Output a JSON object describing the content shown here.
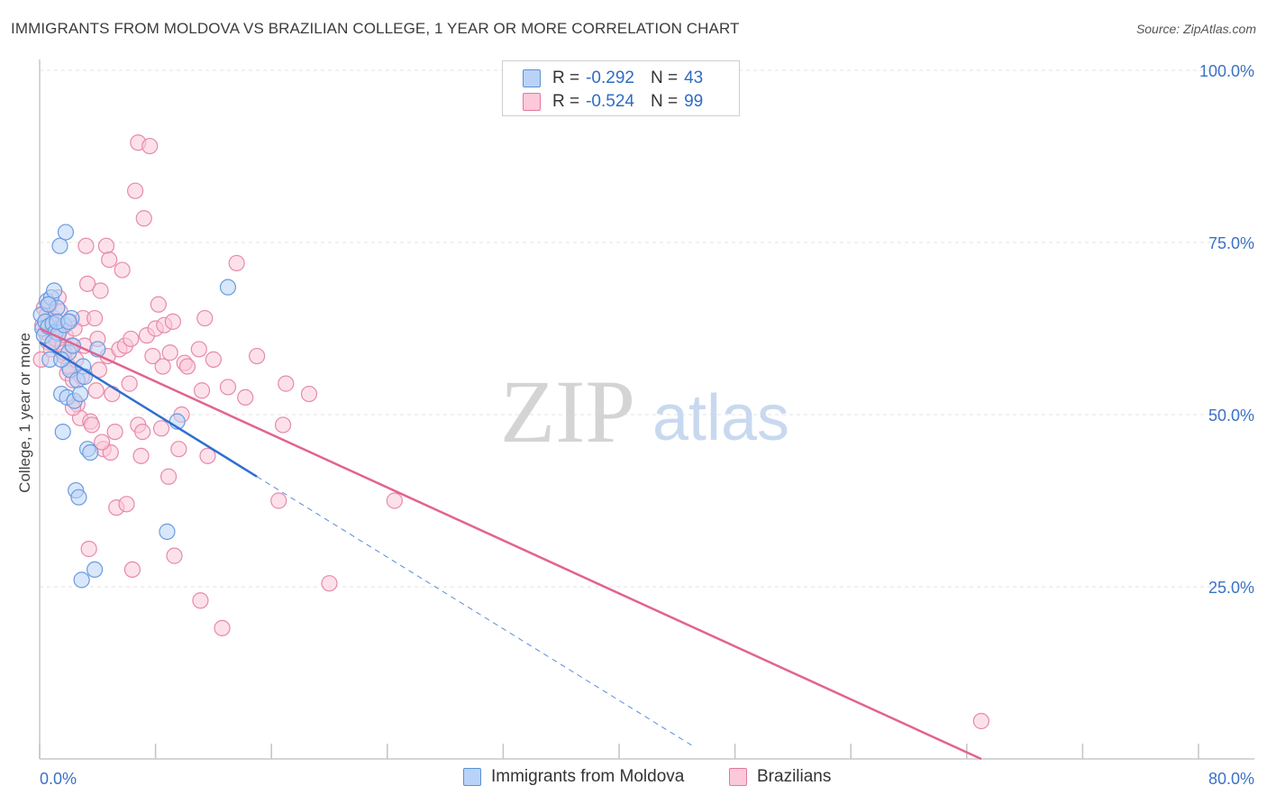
{
  "header": {
    "title": "IMMIGRANTS FROM MOLDOVA VS BRAZILIAN COLLEGE, 1 YEAR OR MORE CORRELATION CHART",
    "source": "Source: ZipAtlas.com"
  },
  "legend": {
    "r_label": "R =",
    "n_label": "N =",
    "series": [
      {
        "name": "Immigrants from Moldova",
        "r": "-0.292",
        "n": "43"
      },
      {
        "name": "Brazilians",
        "r": "-0.524",
        "n": "99"
      }
    ]
  },
  "watermark": {
    "zip": "ZIP",
    "atlas": "atlas"
  },
  "colors": {
    "blue_fill": "#b9d3f6",
    "blue_stroke": "#6a9be0",
    "blue_line": "#2f6fd0",
    "pink_fill": "#fbc9d9",
    "pink_stroke": "#e68aa9",
    "pink_line": "#e2638f",
    "axis_text": "#3a72c8",
    "grid": "#e3e3e3"
  },
  "chart_data": {
    "type": "scatter",
    "title": "IMMIGRANTS FROM MOLDOVA VS BRAZILIAN COLLEGE, 1 YEAR OR MORE CORRELATION CHART",
    "xlabel": "",
    "ylabel": "College, 1 year or more",
    "xlim": [
      0,
      80
    ],
    "ylim": [
      0,
      100
    ],
    "x_tick_labels": [
      "0.0%",
      "80.0%"
    ],
    "y_ticks": [
      25,
      50,
      75,
      100
    ],
    "y_tick_labels": [
      "25.0%",
      "50.0%",
      "75.0%",
      "100.0%"
    ],
    "grid": true,
    "series": [
      {
        "name": "Immigrants from Moldova",
        "r": -0.292,
        "n": 43,
        "trend": {
          "x0": 0,
          "y0": 60.5,
          "x1": 15,
          "y1": 41.0,
          "dash_to_x": 45
        },
        "points": [
          [
            0.1,
            64.5
          ],
          [
            0.2,
            62.5
          ],
          [
            0.3,
            61.5
          ],
          [
            0.4,
            63.5
          ],
          [
            0.5,
            66.5
          ],
          [
            0.6,
            62.8
          ],
          [
            0.7,
            58.0
          ],
          [
            0.8,
            67.0
          ],
          [
            0.9,
            63.2
          ],
          [
            1.0,
            68.0
          ],
          [
            1.1,
            62.0
          ],
          [
            1.2,
            65.5
          ],
          [
            1.3,
            61.8
          ],
          [
            1.4,
            74.5
          ],
          [
            1.5,
            53.0
          ],
          [
            1.6,
            47.5
          ],
          [
            1.7,
            63.0
          ],
          [
            1.8,
            76.5
          ],
          [
            1.9,
            52.5
          ],
          [
            2.0,
            59.0
          ],
          [
            2.1,
            56.5
          ],
          [
            2.2,
            64.0
          ],
          [
            2.3,
            60.0
          ],
          [
            2.4,
            52.0
          ],
          [
            2.5,
            39.0
          ],
          [
            2.6,
            55.0
          ],
          [
            2.7,
            38.0
          ],
          [
            2.8,
            53.0
          ],
          [
            2.9,
            26.0
          ],
          [
            3.0,
            57.0
          ],
          [
            3.1,
            55.5
          ],
          [
            3.3,
            45.0
          ],
          [
            3.5,
            44.5
          ],
          [
            3.8,
            27.5
          ],
          [
            4.0,
            59.5
          ],
          [
            1.2,
            63.5
          ],
          [
            0.9,
            60.5
          ],
          [
            2.0,
            63.5
          ],
          [
            1.5,
            58.0
          ],
          [
            0.6,
            66.0
          ],
          [
            8.8,
            33.0
          ],
          [
            9.5,
            49.0
          ],
          [
            13.0,
            68.5
          ]
        ]
      },
      {
        "name": "Brazilians",
        "r": -0.524,
        "n": 99,
        "trend": {
          "x0": 0,
          "y0": 62.5,
          "x1": 65,
          "y1": 0
        },
        "points": [
          [
            0.1,
            58.0
          ],
          [
            0.2,
            63.0
          ],
          [
            0.3,
            65.5
          ],
          [
            0.4,
            62.0
          ],
          [
            0.5,
            64.5
          ],
          [
            0.6,
            60.5
          ],
          [
            0.7,
            66.0
          ],
          [
            0.8,
            59.5
          ],
          [
            0.9,
            63.5
          ],
          [
            1.0,
            64.0
          ],
          [
            1.1,
            61.0
          ],
          [
            1.2,
            63.0
          ],
          [
            1.3,
            67.0
          ],
          [
            1.4,
            65.0
          ],
          [
            1.5,
            62.5
          ],
          [
            1.6,
            60.0
          ],
          [
            1.7,
            58.5
          ],
          [
            1.8,
            61.5
          ],
          [
            1.9,
            56.0
          ],
          [
            2.0,
            57.0
          ],
          [
            2.1,
            63.5
          ],
          [
            2.2,
            60.0
          ],
          [
            2.3,
            55.0
          ],
          [
            2.4,
            62.5
          ],
          [
            2.5,
            58.0
          ],
          [
            2.6,
            51.5
          ],
          [
            2.8,
            49.5
          ],
          [
            3.0,
            64.0
          ],
          [
            3.1,
            60.0
          ],
          [
            3.2,
            74.5
          ],
          [
            3.3,
            69.0
          ],
          [
            3.5,
            49.0
          ],
          [
            3.6,
            48.5
          ],
          [
            3.8,
            64.0
          ],
          [
            3.9,
            53.5
          ],
          [
            4.0,
            61.0
          ],
          [
            4.1,
            56.5
          ],
          [
            4.2,
            68.0
          ],
          [
            4.4,
            45.0
          ],
          [
            4.6,
            74.5
          ],
          [
            4.7,
            58.5
          ],
          [
            4.8,
            72.5
          ],
          [
            4.9,
            44.5
          ],
          [
            5.0,
            53.0
          ],
          [
            5.3,
            36.5
          ],
          [
            5.5,
            59.5
          ],
          [
            5.7,
            71.0
          ],
          [
            5.9,
            60.0
          ],
          [
            6.0,
            37.0
          ],
          [
            6.2,
            54.5
          ],
          [
            6.4,
            27.5
          ],
          [
            6.6,
            82.5
          ],
          [
            6.8,
            48.5
          ],
          [
            6.8,
            89.5
          ],
          [
            7.0,
            44.0
          ],
          [
            7.2,
            78.5
          ],
          [
            7.4,
            61.5
          ],
          [
            7.6,
            89.0
          ],
          [
            7.8,
            58.5
          ],
          [
            8.0,
            62.5
          ],
          [
            8.2,
            66.0
          ],
          [
            8.4,
            48.0
          ],
          [
            8.6,
            63.0
          ],
          [
            8.9,
            41.0
          ],
          [
            9.0,
            59.0
          ],
          [
            9.3,
            29.5
          ],
          [
            9.6,
            45.0
          ],
          [
            9.8,
            50.0
          ],
          [
            10.0,
            57.5
          ],
          [
            10.2,
            57.0
          ],
          [
            11.0,
            59.5
          ],
          [
            11.2,
            53.5
          ],
          [
            11.4,
            64.0
          ],
          [
            11.6,
            44.0
          ],
          [
            12.0,
            58.0
          ],
          [
            12.6,
            19.0
          ],
          [
            13.0,
            54.0
          ],
          [
            13.6,
            72.0
          ],
          [
            14.2,
            52.5
          ],
          [
            15.0,
            58.5
          ],
          [
            16.5,
            37.5
          ],
          [
            16.8,
            48.5
          ],
          [
            17.0,
            54.5
          ],
          [
            18.6,
            53.0
          ],
          [
            20.0,
            25.5
          ],
          [
            24.5,
            37.5
          ],
          [
            65.0,
            5.5
          ],
          [
            1.0,
            62.5
          ],
          [
            2.3,
            51.0
          ],
          [
            3.4,
            30.5
          ],
          [
            5.2,
            47.5
          ],
          [
            6.3,
            61.0
          ],
          [
            7.1,
            47.5
          ],
          [
            9.2,
            63.5
          ],
          [
            11.1,
            23.0
          ],
          [
            8.5,
            57.0
          ],
          [
            1.7,
            59.0
          ],
          [
            2.9,
            55.5
          ],
          [
            4.3,
            46.0
          ]
        ]
      }
    ]
  }
}
